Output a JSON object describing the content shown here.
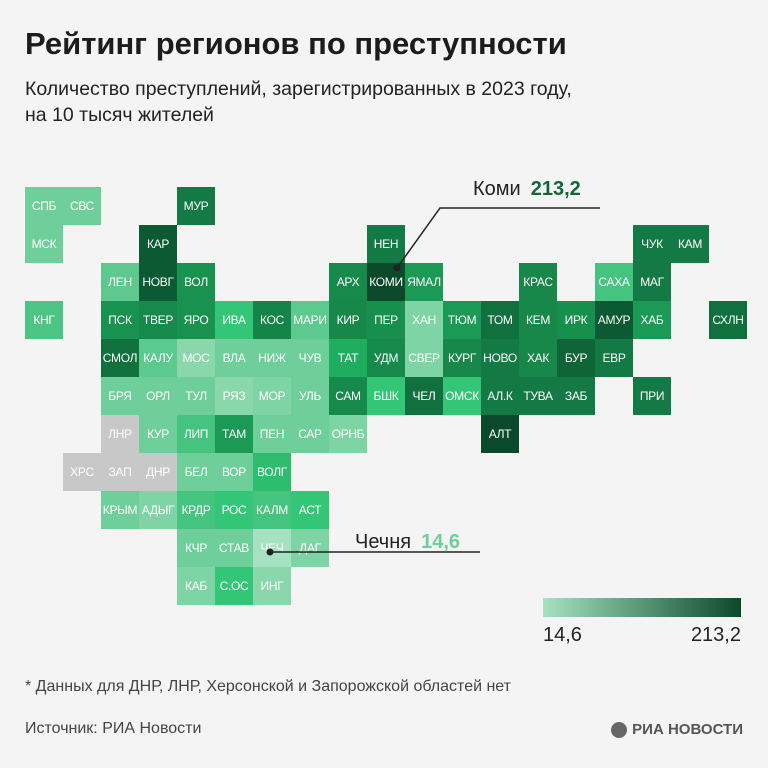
{
  "header": {
    "title": "Рейтинг регионов по преступности",
    "subtitle_line1": "Количество преступлений, зарегистрированных в 2023 году,",
    "subtitle_line2": "на 10 тысяч жителей"
  },
  "chart_data": {
    "type": "heatmap",
    "title": "Рейтинг регионов по преступности",
    "subtitle": "Количество преступлений, зарегистрированных в 2023 году, на 10 тысяч жителей",
    "color_scale": {
      "min": 14.6,
      "max": 213.2,
      "min_label": "14,6",
      "max_label": "213,2",
      "min_color": "#a6e2c2",
      "max_color": "#0a4a2a",
      "no_data_color": "#c8c8c8"
    },
    "annotations": [
      {
        "region": "Коми",
        "value_label": "213,2"
      },
      {
        "region": "Чечня",
        "value_label": "14,6"
      }
    ],
    "cells": [
      {
        "label": "СПБ",
        "row": 0,
        "col": 0,
        "color": "#6fcf9b"
      },
      {
        "label": "СВС",
        "row": 0,
        "col": 1,
        "color": "#6fcf9b"
      },
      {
        "label": "МУР",
        "row": 0,
        "col": 4,
        "color": "#137a45"
      },
      {
        "label": "МСК",
        "row": 1,
        "col": 0,
        "color": "#6fcf9b"
      },
      {
        "label": "КАР",
        "row": 1,
        "col": 3,
        "color": "#0c5a33"
      },
      {
        "label": "НЕН",
        "row": 1,
        "col": 9,
        "color": "#137a45"
      },
      {
        "label": "ЧУК",
        "row": 1,
        "col": 16,
        "color": "#137a45"
      },
      {
        "label": "КАМ",
        "row": 1,
        "col": 17,
        "color": "#137a45"
      },
      {
        "label": "ЛЕН",
        "row": 2,
        "col": 2,
        "color": "#5fc88e"
      },
      {
        "label": "НОВГ",
        "row": 2,
        "col": 3,
        "color": "#0c5a33"
      },
      {
        "label": "ВОЛ",
        "row": 2,
        "col": 4,
        "color": "#17934f"
      },
      {
        "label": "АРХ",
        "row": 2,
        "col": 8,
        "color": "#158a4b"
      },
      {
        "label": "КОМИ",
        "row": 2,
        "col": 9,
        "color": "#0a4a2a"
      },
      {
        "label": "ЯМАЛ",
        "row": 2,
        "col": 10,
        "color": "#1a9a55"
      },
      {
        "label": "КРАС",
        "row": 2,
        "col": 13,
        "color": "#17874a"
      },
      {
        "label": "САХА",
        "row": 2,
        "col": 15,
        "color": "#45c47f"
      },
      {
        "label": "МАГ",
        "row": 2,
        "col": 16,
        "color": "#137a45"
      },
      {
        "label": "КНГ",
        "row": 3,
        "col": 0,
        "color": "#4cc485"
      },
      {
        "label": "ПСК",
        "row": 3,
        "col": 2,
        "color": "#17934f"
      },
      {
        "label": "ТВЕР",
        "row": 3,
        "col": 3,
        "color": "#158a4b"
      },
      {
        "label": "ЯРО",
        "row": 3,
        "col": 4,
        "color": "#17934f"
      },
      {
        "label": "ИВА",
        "row": 3,
        "col": 5,
        "color": "#33c677"
      },
      {
        "label": "КОС",
        "row": 3,
        "col": 6,
        "color": "#148448"
      },
      {
        "label": "МАРИ",
        "row": 3,
        "col": 7,
        "color": "#5cc98e"
      },
      {
        "label": "КИР",
        "row": 3,
        "col": 8,
        "color": "#17874a"
      },
      {
        "label": "ПЕР",
        "row": 3,
        "col": 9,
        "color": "#17904d"
      },
      {
        "label": "ХАН",
        "row": 3,
        "col": 10,
        "color": "#7fd4a6"
      },
      {
        "label": "ТЮМ",
        "row": 3,
        "col": 11,
        "color": "#1a9a55"
      },
      {
        "label": "ТОМ",
        "row": 3,
        "col": 12,
        "color": "#10713e"
      },
      {
        "label": "КЕМ",
        "row": 3,
        "col": 13,
        "color": "#17874a"
      },
      {
        "label": "ИРК",
        "row": 3,
        "col": 14,
        "color": "#17904d"
      },
      {
        "label": "АМУР",
        "row": 3,
        "col": 15,
        "color": "#0c5a33"
      },
      {
        "label": "ХАБ",
        "row": 3,
        "col": 16,
        "color": "#1a9a55"
      },
      {
        "label": "СХЛН",
        "row": 3,
        "col": 18,
        "color": "#10713e"
      },
      {
        "label": "СМОЛ",
        "row": 4,
        "col": 2,
        "color": "#10713e"
      },
      {
        "label": "КАЛУ",
        "row": 4,
        "col": 3,
        "color": "#5cc98e"
      },
      {
        "label": "МОС",
        "row": 4,
        "col": 4,
        "color": "#8ad7ac"
      },
      {
        "label": "ВЛА",
        "row": 4,
        "col": 5,
        "color": "#6fcf9b"
      },
      {
        "label": "НИЖ",
        "row": 4,
        "col": 6,
        "color": "#6fcf9b"
      },
      {
        "label": "ЧУВ",
        "row": 4,
        "col": 7,
        "color": "#6fcf9b"
      },
      {
        "label": "ТАТ",
        "row": 4,
        "col": 8,
        "color": "#1fae5f"
      },
      {
        "label": "УДМ",
        "row": 4,
        "col": 9,
        "color": "#158a4b"
      },
      {
        "label": "СВЕР",
        "row": 4,
        "col": 10,
        "color": "#7fd4a6"
      },
      {
        "label": "КУРГ",
        "row": 4,
        "col": 11,
        "color": "#17874a"
      },
      {
        "label": "НОВО",
        "row": 4,
        "col": 12,
        "color": "#137a45"
      },
      {
        "label": "ХАК",
        "row": 4,
        "col": 13,
        "color": "#17874a"
      },
      {
        "label": "БУР",
        "row": 4,
        "col": 14,
        "color": "#0f6538"
      },
      {
        "label": "ЕВР",
        "row": 4,
        "col": 15,
        "color": "#137a45"
      },
      {
        "label": "БРЯ",
        "row": 5,
        "col": 2,
        "color": "#6fcf9b"
      },
      {
        "label": "ОРЛ",
        "row": 5,
        "col": 3,
        "color": "#6fcf9b"
      },
      {
        "label": "ТУЛ",
        "row": 5,
        "col": 4,
        "color": "#6fcf9b"
      },
      {
        "label": "РЯЗ",
        "row": 5,
        "col": 5,
        "color": "#8ad7ac"
      },
      {
        "label": "МОР",
        "row": 5,
        "col": 6,
        "color": "#7fd4a6"
      },
      {
        "label": "УЛЬ",
        "row": 5,
        "col": 7,
        "color": "#6fcf9b"
      },
      {
        "label": "САМ",
        "row": 5,
        "col": 8,
        "color": "#158a4b"
      },
      {
        "label": "БШК",
        "row": 5,
        "col": 9,
        "color": "#33c677"
      },
      {
        "label": "ЧЕЛ",
        "row": 5,
        "col": 10,
        "color": "#10713e"
      },
      {
        "label": "ОМСК",
        "row": 5,
        "col": 11,
        "color": "#33c677"
      },
      {
        "label": "АЛ.К",
        "row": 5,
        "col": 12,
        "color": "#137a45"
      },
      {
        "label": "ТУВА",
        "row": 5,
        "col": 13,
        "color": "#137a45"
      },
      {
        "label": "ЗАБ",
        "row": 5,
        "col": 14,
        "color": "#137a45"
      },
      {
        "label": "ПРИ",
        "row": 5,
        "col": 16,
        "color": "#137a45"
      },
      {
        "label": "ЛНР",
        "row": 6,
        "col": 2,
        "color": "#c8c8c8"
      },
      {
        "label": "КУР",
        "row": 6,
        "col": 3,
        "color": "#6fcf9b"
      },
      {
        "label": "ЛИП",
        "row": 6,
        "col": 4,
        "color": "#45c47f"
      },
      {
        "label": "ТАМ",
        "row": 6,
        "col": 5,
        "color": "#1a9a55"
      },
      {
        "label": "ПЕН",
        "row": 6,
        "col": 6,
        "color": "#6fcf9b"
      },
      {
        "label": "САР",
        "row": 6,
        "col": 7,
        "color": "#6fcf9b"
      },
      {
        "label": "ОРНБ",
        "row": 6,
        "col": 8,
        "color": "#7fd4a6"
      },
      {
        "label": "АЛТ",
        "row": 6,
        "col": 12,
        "color": "#0a4a2a"
      },
      {
        "label": "ХРС",
        "row": 7,
        "col": 1,
        "color": "#c8c8c8"
      },
      {
        "label": "ЗАП",
        "row": 7,
        "col": 2,
        "color": "#c8c8c8"
      },
      {
        "label": "ДНР",
        "row": 7,
        "col": 3,
        "color": "#c8c8c8"
      },
      {
        "label": "БЕЛ",
        "row": 7,
        "col": 4,
        "color": "#6fcf9b"
      },
      {
        "label": "ВОР",
        "row": 7,
        "col": 5,
        "color": "#6fcf9b"
      },
      {
        "label": "ВОЛГ",
        "row": 7,
        "col": 6,
        "color": "#2ebd6e"
      },
      {
        "label": "КРЫМ",
        "row": 8,
        "col": 2,
        "color": "#6fcf9b"
      },
      {
        "label": "АДЫГ",
        "row": 8,
        "col": 3,
        "color": "#7fd4a6"
      },
      {
        "label": "КРДР",
        "row": 8,
        "col": 4,
        "color": "#45c47f"
      },
      {
        "label": "РОС",
        "row": 8,
        "col": 5,
        "color": "#33c677"
      },
      {
        "label": "КАЛМ",
        "row": 8,
        "col": 6,
        "color": "#45c47f"
      },
      {
        "label": "АСТ",
        "row": 8,
        "col": 7,
        "color": "#33c677"
      },
      {
        "label": "КЧР",
        "row": 9,
        "col": 4,
        "color": "#6fcf9b"
      },
      {
        "label": "СТАВ",
        "row": 9,
        "col": 5,
        "color": "#6fcf9b"
      },
      {
        "label": "ЧЕЧ",
        "row": 9,
        "col": 6,
        "color": "#a6e2c2"
      },
      {
        "label": "ДАГ",
        "row": 9,
        "col": 7,
        "color": "#7fd4a6"
      },
      {
        "label": "КАБ",
        "row": 10,
        "col": 4,
        "color": "#7fd4a6"
      },
      {
        "label": "С.ОС",
        "row": 10,
        "col": 5,
        "color": "#33c677"
      },
      {
        "label": "ИНГ",
        "row": 10,
        "col": 6,
        "color": "#8ad7ac"
      }
    ]
  },
  "callouts": {
    "komi_name": "Коми",
    "komi_value": "213,2",
    "chechnya_name": "Чечня",
    "chechnya_value": "14,6",
    "komi_color": "#12663b",
    "chechnya_color": "#6fcf9b"
  },
  "legend": {
    "min": "14,6",
    "max": "213,2"
  },
  "footer": {
    "note": "* Данных для ДНР, ЛНР, Херсонской и Запорожской областей нет",
    "source": "Источник: РИА Новости",
    "logo": "РИА НОВОСТИ"
  }
}
